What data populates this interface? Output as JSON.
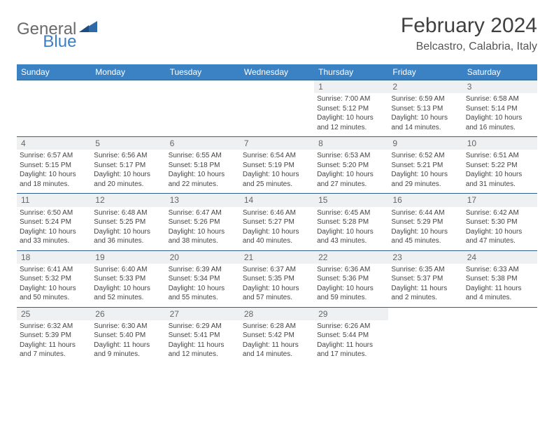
{
  "brand": {
    "general": "General",
    "blue": "Blue"
  },
  "title": "February 2024",
  "location": "Belcastro, Calabria, Italy",
  "colors": {
    "header_bg": "#3b82c4",
    "header_text": "#ffffff",
    "daynum_bg": "#eef0f1",
    "border": "#2f5f8f",
    "brand_blue": "#3b7fc4",
    "brand_gray": "#6a6a6a"
  },
  "weekdays": [
    "Sunday",
    "Monday",
    "Tuesday",
    "Wednesday",
    "Thursday",
    "Friday",
    "Saturday"
  ],
  "weeks": [
    [
      null,
      null,
      null,
      null,
      {
        "n": "1",
        "sr": "Sunrise: 7:00 AM",
        "ss": "Sunset: 5:12 PM",
        "dl": "Daylight: 10 hours and 12 minutes."
      },
      {
        "n": "2",
        "sr": "Sunrise: 6:59 AM",
        "ss": "Sunset: 5:13 PM",
        "dl": "Daylight: 10 hours and 14 minutes."
      },
      {
        "n": "3",
        "sr": "Sunrise: 6:58 AM",
        "ss": "Sunset: 5:14 PM",
        "dl": "Daylight: 10 hours and 16 minutes."
      }
    ],
    [
      {
        "n": "4",
        "sr": "Sunrise: 6:57 AM",
        "ss": "Sunset: 5:15 PM",
        "dl": "Daylight: 10 hours and 18 minutes."
      },
      {
        "n": "5",
        "sr": "Sunrise: 6:56 AM",
        "ss": "Sunset: 5:17 PM",
        "dl": "Daylight: 10 hours and 20 minutes."
      },
      {
        "n": "6",
        "sr": "Sunrise: 6:55 AM",
        "ss": "Sunset: 5:18 PM",
        "dl": "Daylight: 10 hours and 22 minutes."
      },
      {
        "n": "7",
        "sr": "Sunrise: 6:54 AM",
        "ss": "Sunset: 5:19 PM",
        "dl": "Daylight: 10 hours and 25 minutes."
      },
      {
        "n": "8",
        "sr": "Sunrise: 6:53 AM",
        "ss": "Sunset: 5:20 PM",
        "dl": "Daylight: 10 hours and 27 minutes."
      },
      {
        "n": "9",
        "sr": "Sunrise: 6:52 AM",
        "ss": "Sunset: 5:21 PM",
        "dl": "Daylight: 10 hours and 29 minutes."
      },
      {
        "n": "10",
        "sr": "Sunrise: 6:51 AM",
        "ss": "Sunset: 5:22 PM",
        "dl": "Daylight: 10 hours and 31 minutes."
      }
    ],
    [
      {
        "n": "11",
        "sr": "Sunrise: 6:50 AM",
        "ss": "Sunset: 5:24 PM",
        "dl": "Daylight: 10 hours and 33 minutes."
      },
      {
        "n": "12",
        "sr": "Sunrise: 6:48 AM",
        "ss": "Sunset: 5:25 PM",
        "dl": "Daylight: 10 hours and 36 minutes."
      },
      {
        "n": "13",
        "sr": "Sunrise: 6:47 AM",
        "ss": "Sunset: 5:26 PM",
        "dl": "Daylight: 10 hours and 38 minutes."
      },
      {
        "n": "14",
        "sr": "Sunrise: 6:46 AM",
        "ss": "Sunset: 5:27 PM",
        "dl": "Daylight: 10 hours and 40 minutes."
      },
      {
        "n": "15",
        "sr": "Sunrise: 6:45 AM",
        "ss": "Sunset: 5:28 PM",
        "dl": "Daylight: 10 hours and 43 minutes."
      },
      {
        "n": "16",
        "sr": "Sunrise: 6:44 AM",
        "ss": "Sunset: 5:29 PM",
        "dl": "Daylight: 10 hours and 45 minutes."
      },
      {
        "n": "17",
        "sr": "Sunrise: 6:42 AM",
        "ss": "Sunset: 5:30 PM",
        "dl": "Daylight: 10 hours and 47 minutes."
      }
    ],
    [
      {
        "n": "18",
        "sr": "Sunrise: 6:41 AM",
        "ss": "Sunset: 5:32 PM",
        "dl": "Daylight: 10 hours and 50 minutes."
      },
      {
        "n": "19",
        "sr": "Sunrise: 6:40 AM",
        "ss": "Sunset: 5:33 PM",
        "dl": "Daylight: 10 hours and 52 minutes."
      },
      {
        "n": "20",
        "sr": "Sunrise: 6:39 AM",
        "ss": "Sunset: 5:34 PM",
        "dl": "Daylight: 10 hours and 55 minutes."
      },
      {
        "n": "21",
        "sr": "Sunrise: 6:37 AM",
        "ss": "Sunset: 5:35 PM",
        "dl": "Daylight: 10 hours and 57 minutes."
      },
      {
        "n": "22",
        "sr": "Sunrise: 6:36 AM",
        "ss": "Sunset: 5:36 PM",
        "dl": "Daylight: 10 hours and 59 minutes."
      },
      {
        "n": "23",
        "sr": "Sunrise: 6:35 AM",
        "ss": "Sunset: 5:37 PM",
        "dl": "Daylight: 11 hours and 2 minutes."
      },
      {
        "n": "24",
        "sr": "Sunrise: 6:33 AM",
        "ss": "Sunset: 5:38 PM",
        "dl": "Daylight: 11 hours and 4 minutes."
      }
    ],
    [
      {
        "n": "25",
        "sr": "Sunrise: 6:32 AM",
        "ss": "Sunset: 5:39 PM",
        "dl": "Daylight: 11 hours and 7 minutes."
      },
      {
        "n": "26",
        "sr": "Sunrise: 6:30 AM",
        "ss": "Sunset: 5:40 PM",
        "dl": "Daylight: 11 hours and 9 minutes."
      },
      {
        "n": "27",
        "sr": "Sunrise: 6:29 AM",
        "ss": "Sunset: 5:41 PM",
        "dl": "Daylight: 11 hours and 12 minutes."
      },
      {
        "n": "28",
        "sr": "Sunrise: 6:28 AM",
        "ss": "Sunset: 5:42 PM",
        "dl": "Daylight: 11 hours and 14 minutes."
      },
      {
        "n": "29",
        "sr": "Sunrise: 6:26 AM",
        "ss": "Sunset: 5:44 PM",
        "dl": "Daylight: 11 hours and 17 minutes."
      },
      null,
      null
    ]
  ]
}
